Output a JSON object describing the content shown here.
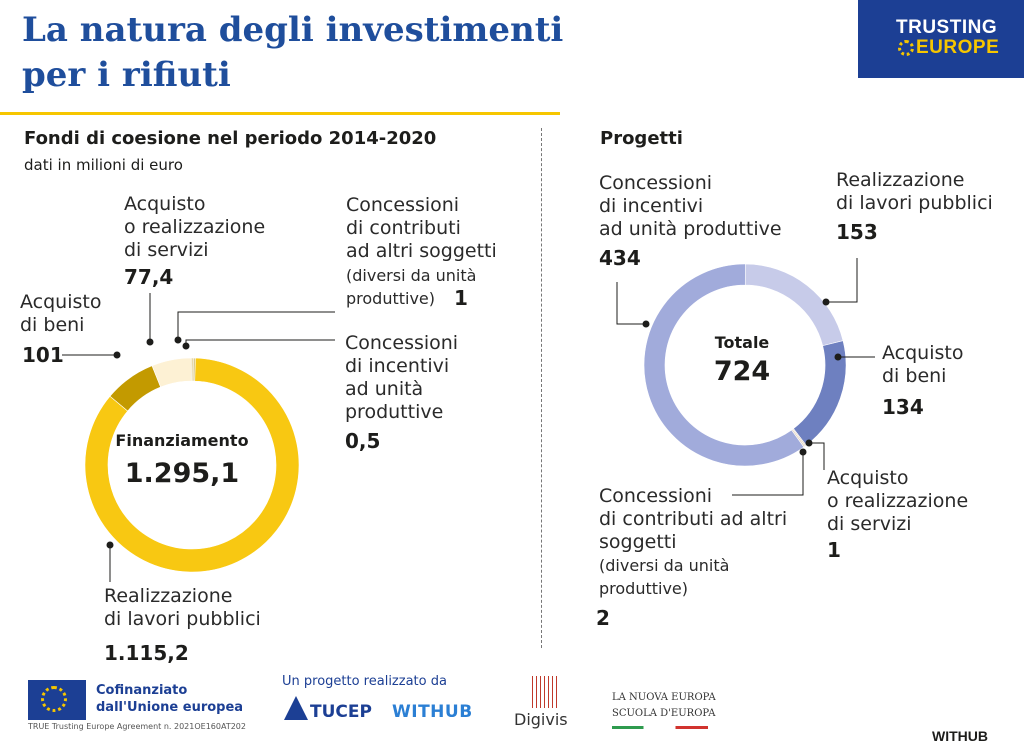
{
  "header": {
    "title": "La natura degli investimenti per i rifiuti",
    "logo_line1": "TRUSTING",
    "logo_line2": "EUROPE"
  },
  "chart_data": [
    {
      "type": "pie",
      "title": "Fondi di coesione nel periodo 2014-2020",
      "subtitle": "dati in milioni di euro",
      "center_label": "Finanziamento",
      "center_value": "1.295,1",
      "slices": [
        {
          "label": "Realizzazione di lavori pubblici",
          "value": 1115.2,
          "display": "1.115,2",
          "color": "#f8c812"
        },
        {
          "label": "Acquisto di beni",
          "value": 101,
          "display": "101",
          "color": "#c39a00"
        },
        {
          "label": "Acquisto o realizzazione di servizi",
          "value": 77.4,
          "display": "77,4",
          "color": "#fdf1d4"
        },
        {
          "label": "Concessioni di contributi ad altri soggetti (diversi da unità produttive)",
          "value": 1,
          "display": "1",
          "color": "#e8d9a8"
        },
        {
          "label": "Concessioni di incentivi ad unità produttive",
          "value": 0.5,
          "display": "0,5",
          "color": "#d9c98f"
        }
      ]
    },
    {
      "type": "pie",
      "title": "Progetti",
      "center_label": "Totale",
      "center_value": "724",
      "slices": [
        {
          "label": "Realizzazione di lavori pubblici",
          "value": 153,
          "display": "153",
          "color": "#c7cbe9"
        },
        {
          "label": "Acquisto di beni",
          "value": 134,
          "display": "134",
          "color": "#6e80c0"
        },
        {
          "label": "Acquisto o realizzazione di servizi",
          "value": 1,
          "display": "1",
          "color": "#d7c0a6"
        },
        {
          "label": "Concessioni di contributi ad altri soggetti (diversi da unità produttive)",
          "value": 2,
          "display": "2",
          "color": "#e3d4c2"
        },
        {
          "label": "Concessioni di incentivi ad unità produttive",
          "value": 434,
          "display": "434",
          "color": "#a1abdb"
        }
      ]
    }
  ],
  "labels_left": {
    "servizi": "Acquisto\no realizzazione\ndi servizi",
    "beni": "Acquisto\ndi beni",
    "contributi_main": "Concessioni\ndi contributi\nad altri soggetti",
    "contributi_note": "(diversi da unità\nproduttive)",
    "incentivi": "Concessioni\ndi incentivi\nad unità\nproduttive",
    "lavori": "Realizzazione\ndi lavori pubblici"
  },
  "labels_right": {
    "incentivi": "Concessioni\ndi incentivi\nad unità produttive",
    "lavori": "Realizzazione\ndi lavori pubblici",
    "beni": "Acquisto\ndi beni",
    "servizi": "Acquisto\no realizzazione\ndi servizi",
    "contributi_main": "Concessioni\ndi contributi ad altri\nsoggetti",
    "contributi_note": "(diversi da unità\nproduttive)"
  },
  "footer": {
    "eu_text": "Cofinanziato\ndall'Unione europea",
    "eu_small": "TRUE Trusting Europe Agreement n. 2021OE160AT202",
    "project_text": "Un progetto realizzato da",
    "tucep": "TUCEP",
    "withub_logo": "WITHUB",
    "digivis": "Digivis",
    "nuova_europa": "LA NUOVA EUROPA\nSCUOLA D'EUROPA",
    "withub_footer": "WITHUB"
  }
}
